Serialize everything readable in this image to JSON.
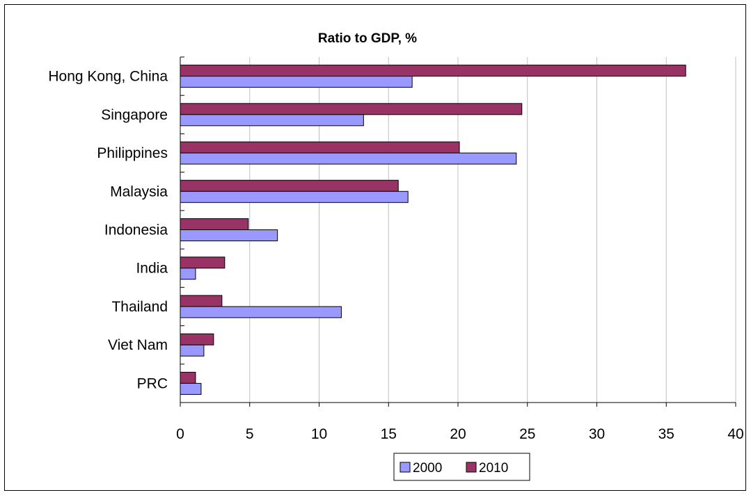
{
  "chart_data": {
    "type": "bar",
    "orientation": "horizontal",
    "title": "Ratio to GDP, %",
    "xlabel": "",
    "ylabel": "",
    "categories": [
      "Hong Kong, China",
      "Singapore",
      "Philippines",
      "Malaysia",
      "Indonesia",
      "India",
      "Thailand",
      "Viet Nam",
      "PRC"
    ],
    "series": [
      {
        "name": "2010",
        "color": "#993366",
        "values": [
          36.4,
          24.6,
          20.1,
          15.7,
          4.9,
          3.2,
          3.0,
          2.4,
          1.1
        ]
      },
      {
        "name": "2000",
        "color": "#9999ff",
        "values": [
          16.7,
          13.2,
          24.2,
          16.4,
          7.0,
          1.1,
          11.6,
          1.7,
          1.5
        ]
      }
    ],
    "xlim": [
      0,
      40
    ],
    "xticks": [
      "0",
      "5",
      "10",
      "15",
      "20",
      "25",
      "30",
      "35",
      "40"
    ],
    "grid": true,
    "legend": {
      "position": "bottom",
      "entries": [
        "2000",
        "2010"
      ]
    }
  }
}
